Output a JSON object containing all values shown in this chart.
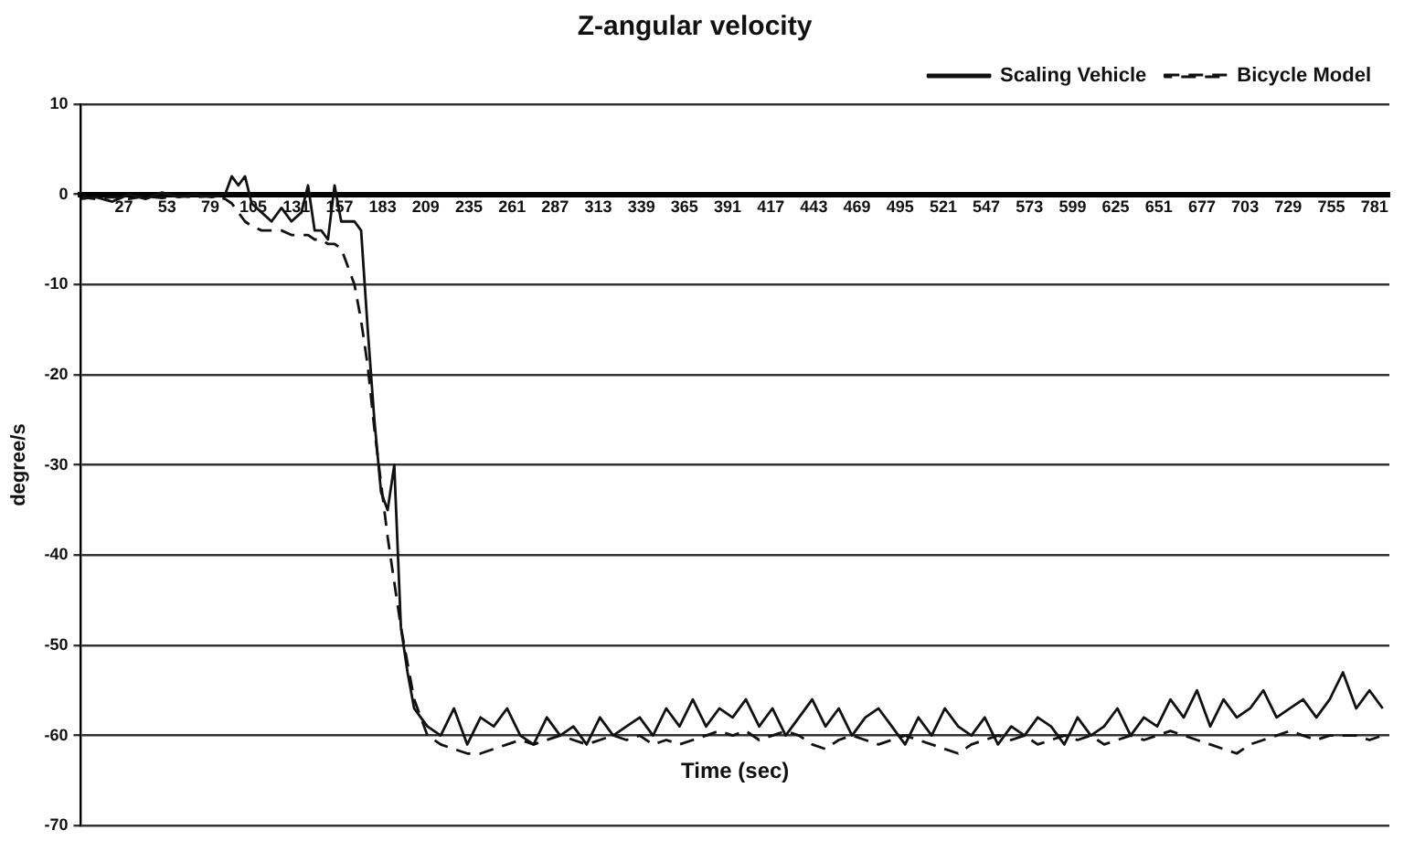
{
  "chart_data": {
    "type": "line",
    "title": "Z-angular velocity",
    "xlabel": "Time (sec)",
    "ylabel": "degree/s",
    "x": [
      1,
      10,
      20,
      30,
      40,
      50,
      60,
      70,
      80,
      88,
      92,
      96,
      100,
      104,
      110,
      116,
      122,
      128,
      134,
      138,
      142,
      146,
      150,
      154,
      158,
      162,
      166,
      170,
      174,
      178,
      182,
      186,
      190,
      194,
      198,
      202,
      206,
      210,
      218,
      226,
      234,
      242,
      250,
      258,
      266,
      274,
      282,
      290,
      298,
      306,
      314,
      322,
      330,
      338,
      346,
      354,
      362,
      370,
      378,
      386,
      394,
      402,
      410,
      418,
      426,
      434,
      442,
      450,
      458,
      466,
      474,
      482,
      490,
      498,
      506,
      514,
      522,
      530,
      538,
      546,
      554,
      562,
      570,
      578,
      586,
      594,
      602,
      610,
      618,
      626,
      634,
      642,
      650,
      658,
      666,
      674,
      682,
      690,
      698,
      706,
      714,
      722,
      730,
      738,
      746,
      754,
      762,
      770,
      778,
      786
    ],
    "series": [
      {
        "name": "Scaling Vehicle",
        "color": "#111111",
        "line_style": "solid",
        "values": [
          -0.5,
          -0.3,
          -0.8,
          0,
          -0.5,
          0.2,
          -0.3,
          0,
          -0.3,
          0,
          2,
          1,
          2,
          -1,
          -2,
          -3,
          -1.5,
          -3,
          -2,
          1,
          -4,
          -4,
          -5,
          1,
          -3,
          -3,
          -3,
          -4,
          -15,
          -25,
          -33,
          -35,
          -30,
          -48,
          -53,
          -57,
          -58,
          -59,
          -60,
          -57,
          -61,
          -58,
          -59,
          -57,
          -60,
          -61,
          -58,
          -60,
          -59,
          -61,
          -58,
          -60,
          -59,
          -58,
          -60,
          -57,
          -59,
          -56,
          -59,
          -57,
          -58,
          -56,
          -59,
          -57,
          -60,
          -58,
          -56,
          -59,
          -57,
          -60,
          -58,
          -57,
          -59,
          -61,
          -58,
          -60,
          -57,
          -59,
          -60,
          -58,
          -61,
          -59,
          -60,
          -58,
          -59,
          -61,
          -58,
          -60,
          -59,
          -57,
          -60,
          -58,
          -59,
          -56,
          -58,
          -55,
          -59,
          -56,
          -58,
          -57,
          -55,
          -58,
          -57,
          -56,
          -58,
          -56,
          -53,
          -57,
          -55,
          -57
        ]
      },
      {
        "name": "Bicycle Model",
        "color": "#111111",
        "line_style": "dashed",
        "values": [
          -0.3,
          -0.5,
          -0.3,
          -0.5,
          -0.2,
          -0.4,
          -0.2,
          -0.3,
          -0.2,
          -0.5,
          -1,
          -2,
          -3,
          -3.5,
          -4,
          -4,
          -4,
          -4.5,
          -4.5,
          -4.5,
          -5,
          -5,
          -5.5,
          -5.5,
          -6,
          -8,
          -10,
          -14,
          -19,
          -26,
          -32,
          -38,
          -43,
          -48,
          -52,
          -56,
          -58,
          -60,
          -61,
          -61.5,
          -62,
          -62,
          -61.5,
          -61,
          -60.5,
          -61,
          -60.5,
          -60,
          -60.5,
          -61,
          -60.5,
          -60,
          -60.5,
          -60,
          -61,
          -60.5,
          -61,
          -60.5,
          -60,
          -59.5,
          -60,
          -59.5,
          -60.5,
          -60,
          -59.5,
          -60,
          -61,
          -61.5,
          -60.5,
          -60,
          -60.5,
          -61,
          -60.5,
          -60,
          -60.5,
          -61,
          -61.5,
          -62,
          -61,
          -60.5,
          -60,
          -60.5,
          -60,
          -61,
          -60.5,
          -60,
          -60.5,
          -60,
          -61,
          -60.5,
          -60,
          -60.5,
          -60,
          -59.5,
          -60,
          -60.5,
          -61,
          -61.5,
          -62,
          -61,
          -60.5,
          -60,
          -59.5,
          -60,
          -60.5,
          -60,
          -60,
          -60,
          -60.5,
          -60
        ]
      }
    ],
    "xlim": [
      1,
      790
    ],
    "xticks": [
      27,
      53,
      79,
      105,
      131,
      157,
      183,
      209,
      235,
      261,
      287,
      313,
      339,
      365,
      391,
      417,
      443,
      469,
      495,
      521,
      547,
      573,
      599,
      625,
      651,
      677,
      703,
      729,
      755,
      781
    ],
    "ylim": [
      -70,
      10
    ],
    "yticks": [
      -70,
      -60,
      -50,
      -40,
      -30,
      -20,
      -10,
      0,
      10
    ],
    "grid": "y",
    "legend": "top right",
    "marker": "none"
  }
}
